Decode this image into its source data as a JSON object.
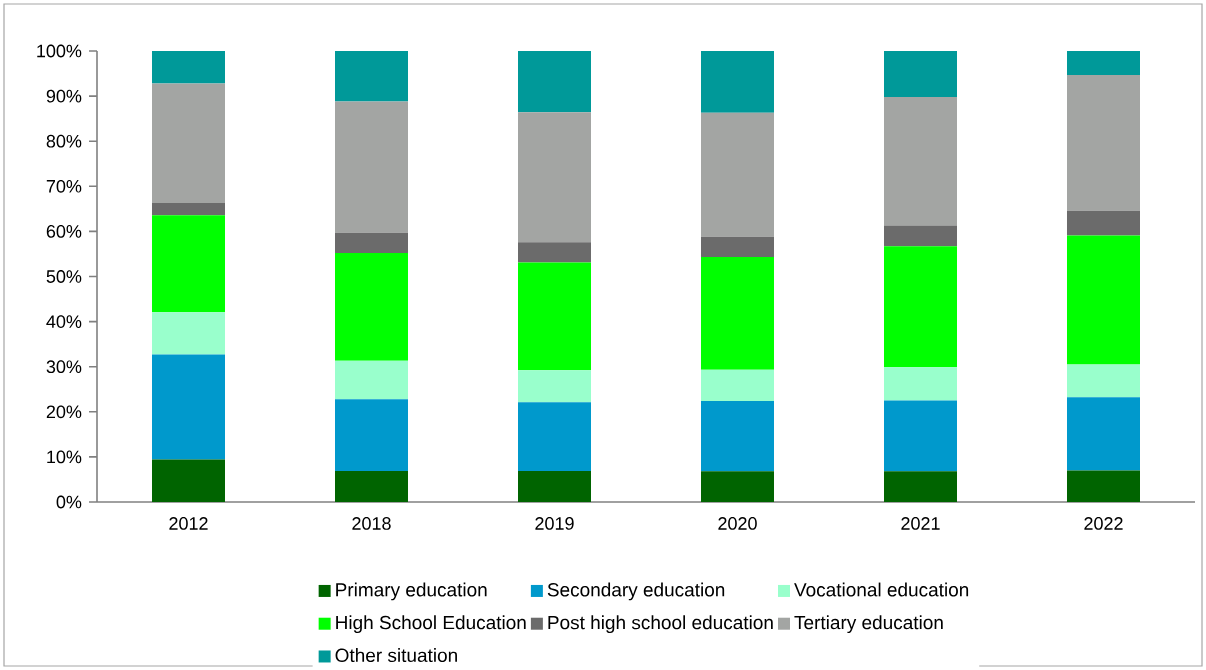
{
  "chart_data": {
    "type": "bar",
    "stacked": true,
    "legend": "bottom",
    "categories": [
      "2012",
      "2018",
      "2019",
      "2020",
      "2021",
      "2022"
    ],
    "ylim": [
      0,
      100
    ],
    "yticks": [
      {
        "value": 0,
        "label": "0%"
      },
      {
        "value": 10,
        "label": "10%"
      },
      {
        "value": 20,
        "label": "20%"
      },
      {
        "value": 30,
        "label": "30%"
      },
      {
        "value": 40,
        "label": "40%"
      },
      {
        "value": 50,
        "label": "50%"
      },
      {
        "value": 60,
        "label": "60%"
      },
      {
        "value": 70,
        "label": "70%"
      },
      {
        "value": 80,
        "label": "80%"
      },
      {
        "value": 90,
        "label": "90%"
      },
      {
        "value": 100,
        "label": "100%"
      }
    ],
    "series": [
      {
        "name": "Primary education",
        "color": "#006400",
        "values": [
          9.4,
          6.9,
          6.9,
          6.8,
          6.8,
          7.0
        ]
      },
      {
        "name": "Secondary education",
        "color": "#0099cc",
        "values": [
          23.3,
          15.9,
          15.2,
          15.6,
          15.7,
          16.2
        ]
      },
      {
        "name": "Vocational education",
        "color": "#99ffcc",
        "values": [
          9.4,
          8.5,
          7.1,
          6.9,
          7.4,
          7.3
        ]
      },
      {
        "name": "High School Education",
        "color": "#00ff00",
        "values": [
          21.5,
          23.9,
          23.9,
          25.0,
          26.8,
          28.6
        ]
      },
      {
        "name": "Post high school education",
        "color": "#6b6b6b",
        "values": [
          2.7,
          4.5,
          4.5,
          4.5,
          4.6,
          5.5
        ]
      },
      {
        "name": "Tertiary education",
        "color": "#a3a5a3",
        "values": [
          26.5,
          29.1,
          28.8,
          27.5,
          28.5,
          30.1
        ]
      },
      {
        "name": "Other situation",
        "color": "#009999",
        "values": [
          7.2,
          11.2,
          13.6,
          13.7,
          10.2,
          5.3
        ]
      }
    ]
  }
}
